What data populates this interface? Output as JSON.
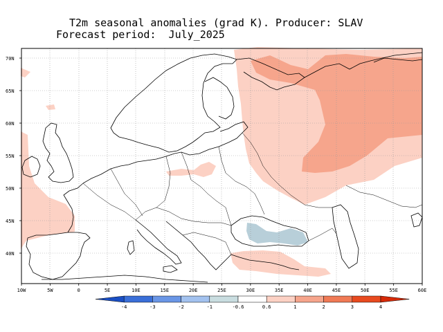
{
  "title": {
    "line1": "T2m seasonal anomalies (grad K). Producer: SLAV",
    "line2": "Forecast period:  July_2025"
  },
  "map": {
    "lat_labels": [
      "70N",
      "65N",
      "60N",
      "55N",
      "50N",
      "45N",
      "40N"
    ],
    "lon_labels": [
      "10W",
      "5W",
      "0",
      "5E",
      "10E",
      "15E",
      "20E",
      "25E",
      "30E",
      "35E",
      "40E",
      "45E",
      "50E",
      "55E",
      "60E"
    ],
    "lon_range": [
      -10,
      60
    ],
    "lat_range": [
      35,
      72
    ]
  },
  "colorbar": {
    "labels": [
      "-4",
      "-3",
      "-2",
      "-1",
      "-0.6",
      "0.6",
      "1",
      "2",
      "3",
      "4"
    ],
    "colors": [
      "#1a4fc4",
      "#3a6fd8",
      "#6a96e6",
      "#a3c2ef",
      "#c9dde0",
      "#ffffff",
      "#fcd1c4",
      "#f6a58c",
      "#f07a55",
      "#e84a1f",
      "#d62a08"
    ]
  },
  "colors": {
    "warm_light": "#fcd1c4",
    "warm_medium": "#f6a58c",
    "cool_light": "#b8cfd9"
  }
}
